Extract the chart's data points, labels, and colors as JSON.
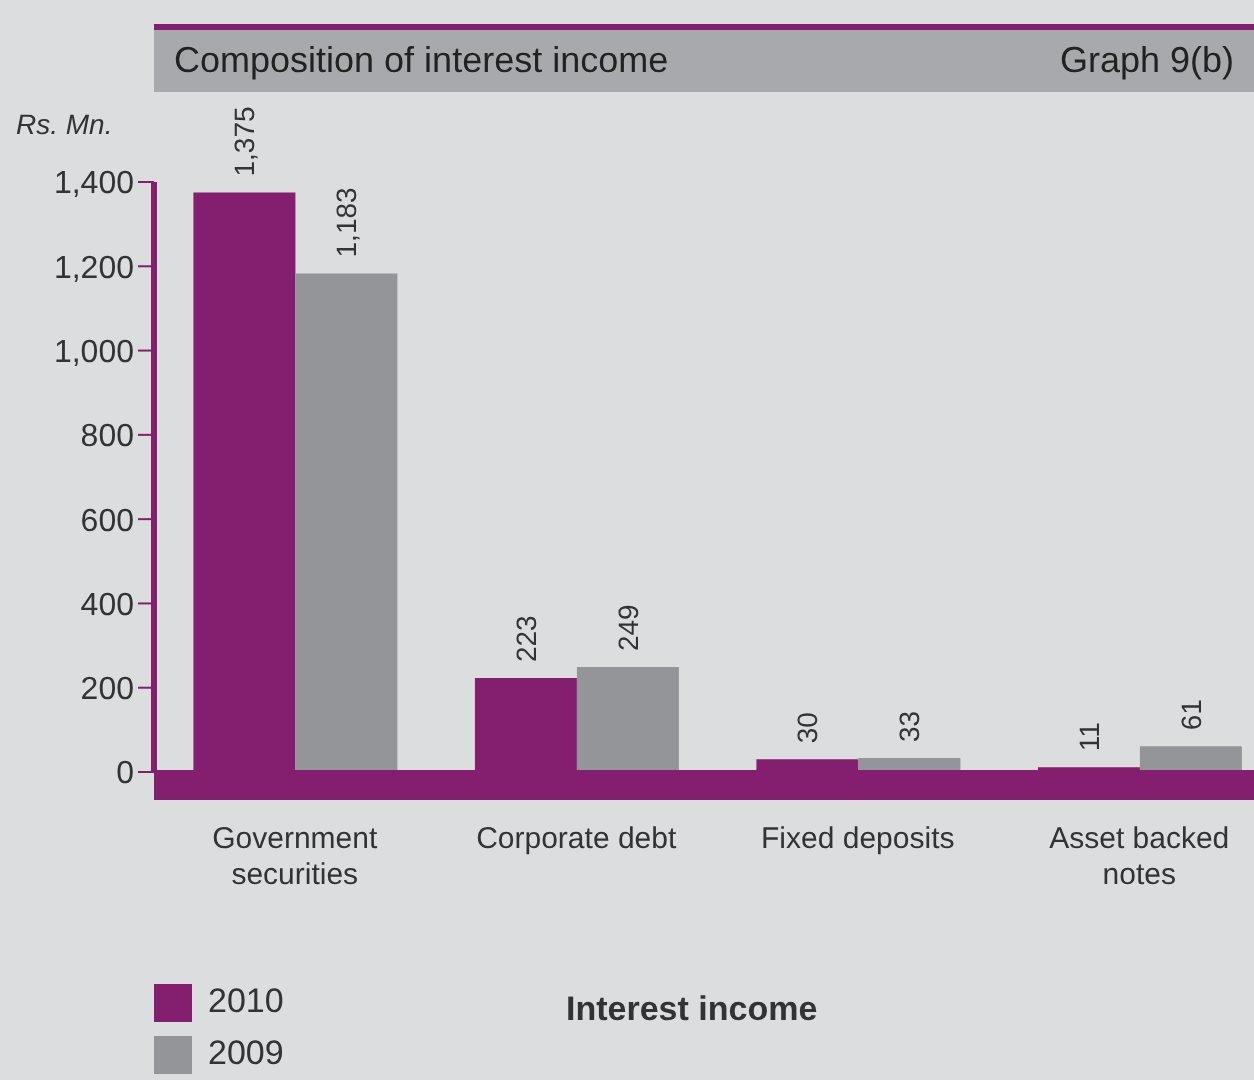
{
  "chart_data": {
    "type": "bar",
    "title": "Composition of interest income",
    "annotations": [
      "Graph 9(b)"
    ],
    "ylabel": "Rs. Mn.",
    "xlabel": "Interest income",
    "categories": [
      "Government securities",
      "Corporate debt",
      "Fixed deposits",
      "Asset backed notes"
    ],
    "series": [
      {
        "name": "2010",
        "color": "#841e6e",
        "values": [
          1375,
          223,
          30,
          11
        ]
      },
      {
        "name": "2009",
        "color": "#939598",
        "values": [
          1183,
          249,
          33,
          61
        ]
      }
    ],
    "ylim": [
      0,
      1400
    ],
    "yticks": [
      0,
      200,
      400,
      600,
      800,
      {
        "value": 1000,
        "label": "1,000"
      },
      {
        "value": 1200,
        "label": "1,200"
      },
      {
        "value": 1400,
        "label": "1,400"
      }
    ],
    "value_labels": [
      [
        "1,375",
        "223",
        "30",
        "11"
      ],
      [
        "1,183",
        "249",
        "33",
        "61"
      ]
    ],
    "legend": "bottom left"
  }
}
